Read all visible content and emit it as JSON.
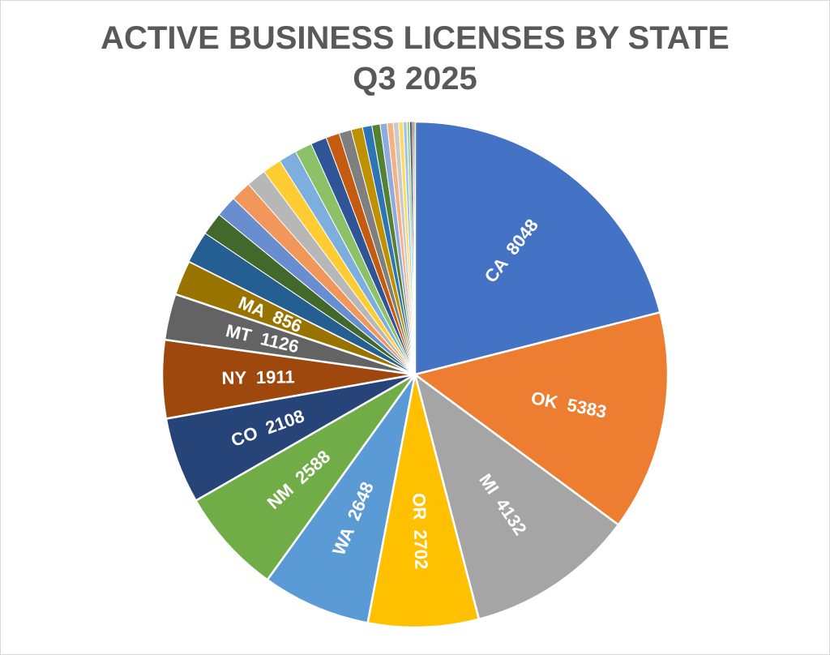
{
  "chart_data": {
    "type": "pie",
    "title_line1": "ACTIVE BUSINESS LICENSES BY STATE",
    "title_line2": "Q3 2025",
    "legend": "none",
    "slices": [
      {
        "label": "CA",
        "value": 8048,
        "color": "#4472C4",
        "show_label": true
      },
      {
        "label": "OK",
        "value": 5383,
        "color": "#ED7D31",
        "show_label": true
      },
      {
        "label": "MI",
        "value": 4132,
        "color": "#A5A5A5",
        "show_label": true
      },
      {
        "label": "OR",
        "value": 2702,
        "color": "#FFC000",
        "show_label": true
      },
      {
        "label": "WA",
        "value": 2648,
        "color": "#5B9BD5",
        "show_label": true
      },
      {
        "label": "NM",
        "value": 2588,
        "color": "#70AD47",
        "show_label": true
      },
      {
        "label": "CO",
        "value": 2108,
        "color": "#264478",
        "show_label": true
      },
      {
        "label": "NY",
        "value": 1911,
        "color": "#9E480E",
        "show_label": true
      },
      {
        "label": "MT",
        "value": 1126,
        "color": "#636363",
        "show_label": true
      },
      {
        "label": "MA",
        "value": 856,
        "color": "#997300",
        "show_label": true
      },
      {
        "label": "",
        "value": 780,
        "color": "#255E91",
        "show_label": false
      },
      {
        "label": "",
        "value": 560,
        "color": "#43682B",
        "show_label": false
      },
      {
        "label": "",
        "value": 520,
        "color": "#698ED0",
        "show_label": false
      },
      {
        "label": "",
        "value": 500,
        "color": "#F1975A",
        "show_label": false
      },
      {
        "label": "",
        "value": 480,
        "color": "#B7B7B7",
        "show_label": false
      },
      {
        "label": "",
        "value": 460,
        "color": "#FFCD33",
        "show_label": false
      },
      {
        "label": "",
        "value": 440,
        "color": "#7CAFDD",
        "show_label": false
      },
      {
        "label": "",
        "value": 420,
        "color": "#8CC168",
        "show_label": false
      },
      {
        "label": "",
        "value": 390,
        "color": "#2F5597",
        "show_label": false
      },
      {
        "label": "",
        "value": 330,
        "color": "#C55A11",
        "show_label": false
      },
      {
        "label": "",
        "value": 300,
        "color": "#7F7F7F",
        "show_label": false
      },
      {
        "label": "",
        "value": 280,
        "color": "#BF9000",
        "show_label": false
      },
      {
        "label": "",
        "value": 230,
        "color": "#2E75B6",
        "show_label": false
      },
      {
        "label": "",
        "value": 200,
        "color": "#548235",
        "show_label": false
      },
      {
        "label": "",
        "value": 170,
        "color": "#8FAADC",
        "show_label": false
      },
      {
        "label": "",
        "value": 150,
        "color": "#F4B183",
        "show_label": false
      },
      {
        "label": "",
        "value": 130,
        "color": "#C9C9C9",
        "show_label": false
      },
      {
        "label": "",
        "value": 110,
        "color": "#FFD966",
        "show_label": false
      },
      {
        "label": "",
        "value": 90,
        "color": "#9DC3E6",
        "show_label": false
      },
      {
        "label": "",
        "value": 70,
        "color": "#A9D18E",
        "show_label": false
      },
      {
        "label": "",
        "value": 55,
        "color": "#1F3864",
        "show_label": false
      },
      {
        "label": "",
        "value": 40,
        "color": "#843C0C",
        "show_label": false
      },
      {
        "label": "",
        "value": 30,
        "color": "#3A3A3A",
        "show_label": false
      }
    ]
  }
}
